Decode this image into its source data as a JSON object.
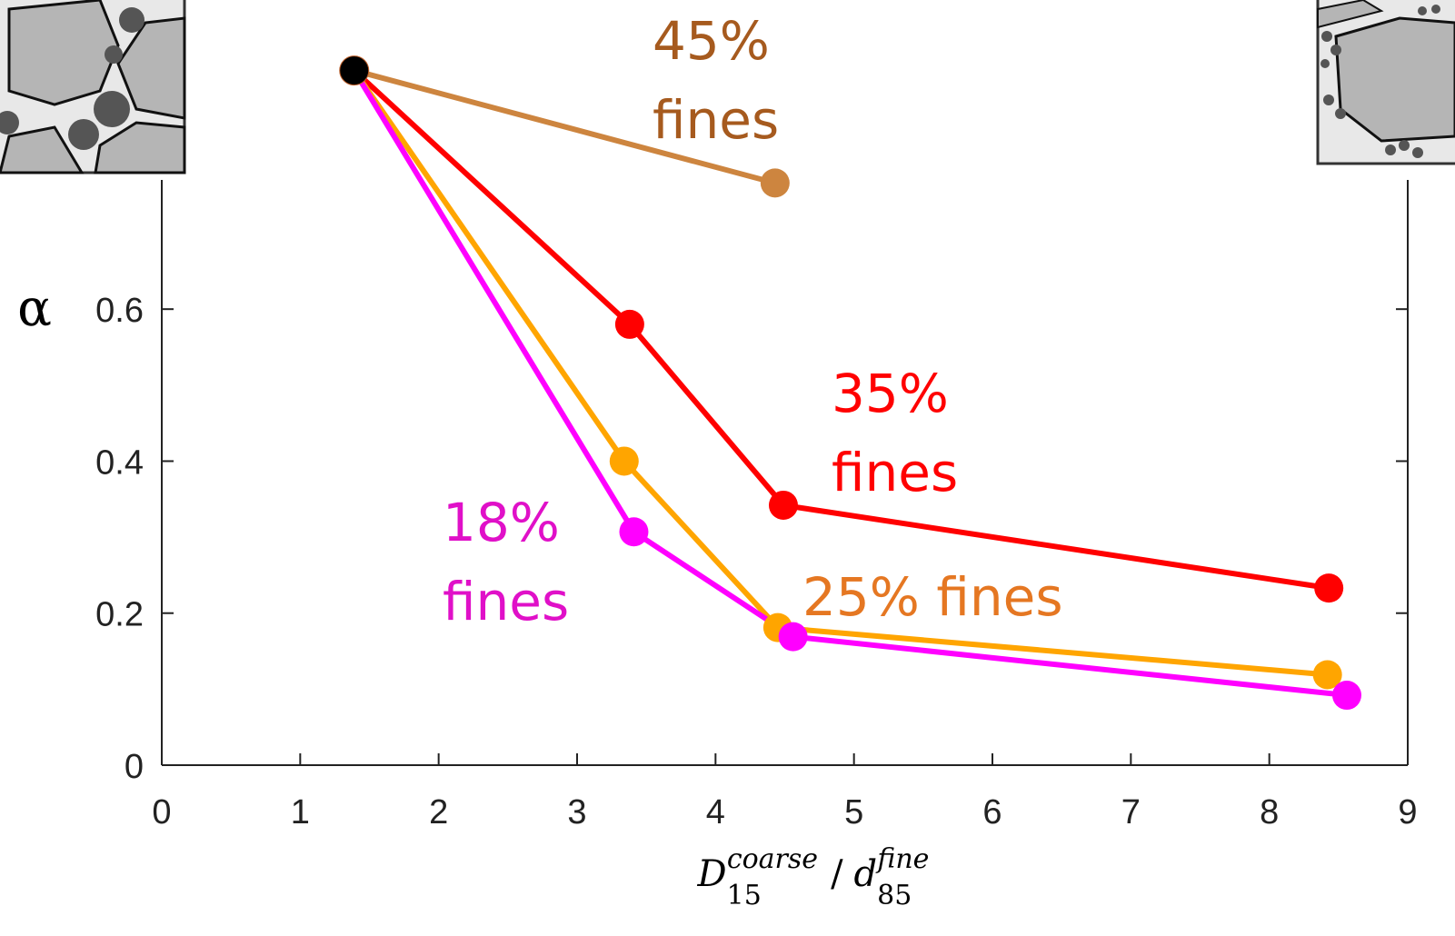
{
  "chart_data": {
    "type": "line",
    "xlabel": {
      "main": "D",
      "sub": "15",
      "sup": "coarse",
      "sep": "/",
      "main2": "d",
      "sub2": "85",
      "sup2": "fine"
    },
    "ylabel": "α",
    "xlim": [
      0,
      9
    ],
    "xticks": [
      0,
      1,
      2,
      3,
      4,
      5,
      6,
      7,
      8,
      9
    ],
    "ylim": [
      0,
      0.77
    ],
    "yticks": [
      0,
      0.2,
      0.4,
      0.6
    ],
    "start_marker_color": "#000000",
    "series": [
      {
        "x": [
          1.39,
          4.43
        ],
        "values": [
          0.914,
          0.766
        ],
        "color": "#cd853f",
        "label": [
          "45%",
          "fines"
        ],
        "label_color": "#a65a1e"
      },
      {
        "x": [
          1.39,
          3.38,
          4.49,
          8.43
        ],
        "values": [
          0.914,
          0.58,
          0.342,
          0.233
        ],
        "color": "#ff0000",
        "label": [
          "35%",
          "fines"
        ],
        "label_color": "#ff0000"
      },
      {
        "x": [
          1.39,
          3.34,
          4.45,
          8.42
        ],
        "values": [
          0.914,
          0.4,
          0.181,
          0.119
        ],
        "color": "#ffa500",
        "label": [
          "25% fines"
        ],
        "label_color": "#e57722"
      },
      {
        "x": [
          1.39,
          3.41,
          4.56,
          8.56
        ],
        "values": [
          0.914,
          0.307,
          0.169,
          0.092
        ],
        "color": "#ff00ff",
        "label": [
          "18%",
          "fines"
        ],
        "label_color": "#e010c8"
      }
    ]
  }
}
